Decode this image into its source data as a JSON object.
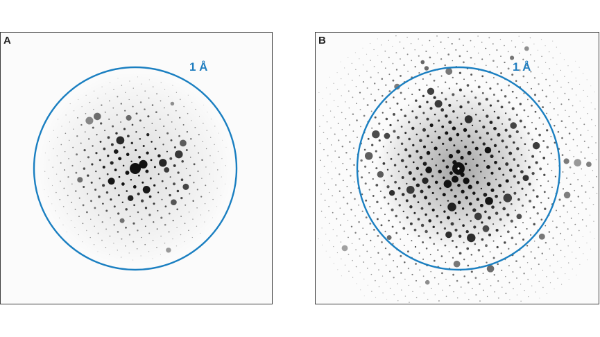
{
  "panels": [
    {
      "label": "A",
      "scale_label": "1 Å"
    },
    {
      "label": "B",
      "scale_label": "1 Å"
    }
  ],
  "colors": {
    "ring": "#1a7fc1",
    "frame": "#3a3a3a",
    "spot": "#111111",
    "background": "#fbfbfb"
  }
}
